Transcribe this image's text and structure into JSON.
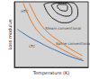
{
  "chart_data": {
    "type": "line",
    "x_label": "Temperature (K)",
    "y_label": "Loss modulus",
    "xlim": [
      0,
      100
    ],
    "ylim": [
      0,
      100
    ],
    "tick_labels": false,
    "grid": false,
    "series": [
      {
        "color": "#e87722",
        "x": [
          12,
          18,
          24,
          32,
          42,
          52,
          62,
          72,
          82,
          92
        ],
        "values": [
          98,
          82,
          68,
          55,
          44,
          36,
          29,
          23,
          17,
          12
        ]
      },
      {
        "color": "#e87722",
        "x": [
          20,
          26,
          33,
          42,
          52,
          62,
          72,
          82,
          92
        ],
        "values": [
          98,
          84,
          70,
          57,
          47,
          39,
          31,
          24,
          18
        ]
      },
      {
        "color": "#3a6fb0",
        "x": [
          4,
          12,
          22,
          34,
          46,
          58,
          70,
          82,
          94
        ],
        "values": [
          58,
          52,
          45,
          38,
          31,
          25,
          19,
          14,
          10
        ]
      },
      {
        "color": "#222222",
        "x": [
          40,
          46,
          56,
          68,
          80,
          86,
          84,
          74,
          62,
          50,
          40
        ],
        "values": [
          96,
          82,
          72,
          68,
          72,
          82,
          94,
          99,
          99,
          99,
          96
        ]
      },
      {
        "color": "#222222",
        "x": [
          50,
          55,
          63,
          72,
          78,
          76,
          68,
          58,
          50
        ],
        "values": [
          95,
          86,
          80,
          78,
          84,
          94,
          98,
          98,
          95
        ]
      },
      {
        "color": "#222222",
        "x": [
          58,
          63,
          70,
          72,
          68,
          60,
          58
        ],
        "values": [
          93,
          87,
          86,
          92,
          96,
          96,
          93
        ]
      }
    ],
    "annotations": [
      {
        "text": "Steam conventional",
        "x": 66,
        "y": 60
      },
      {
        "text": "Spline conventional",
        "x": 80,
        "y": 36
      },
      {
        "text": "LTC",
        "x": 24,
        "y": 32
      },
      {
        "text": "HTC",
        "x": 14,
        "y": 86
      }
    ]
  }
}
